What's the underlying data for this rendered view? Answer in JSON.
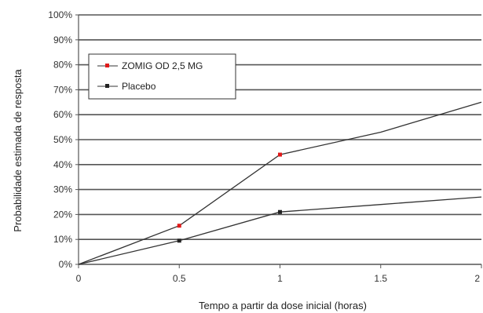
{
  "chart_data": {
    "type": "line",
    "title": "",
    "xlabel": "Tempo a partir da dose inicial (horas)",
    "ylabel": "Probabilidade estimada de resposta",
    "xlim": [
      0,
      2
    ],
    "ylim": [
      0,
      100
    ],
    "x_ticks": [
      0,
      0.5,
      1,
      1.5,
      2
    ],
    "x_tick_labels": [
      "0",
      "0.5",
      "1",
      "1.5",
      "2"
    ],
    "y_ticks": [
      0,
      10,
      20,
      30,
      40,
      50,
      60,
      70,
      80,
      90,
      100
    ],
    "y_tick_labels": [
      "0%",
      "10%",
      "20%",
      "30%",
      "40%",
      "50%",
      "60%",
      "70%",
      "80%",
      "90%",
      "100%"
    ],
    "grid": "horizontal",
    "legend_position": "top-left",
    "series": [
      {
        "name": "ZOMIG OD 2,5 MG",
        "color": "#e01a1a",
        "line_color": "#333333",
        "x": [
          0,
          0.5,
          1,
          1.5,
          2
        ],
        "y": [
          0,
          15.5,
          44,
          53,
          65
        ],
        "marker_indices": [
          1,
          2
        ]
      },
      {
        "name": "Placebo",
        "color": "#222222",
        "line_color": "#333333",
        "x": [
          0,
          0.5,
          1,
          1.5,
          2
        ],
        "y": [
          0,
          9.5,
          21,
          24,
          27
        ],
        "marker_indices": [
          1,
          2
        ]
      }
    ]
  }
}
